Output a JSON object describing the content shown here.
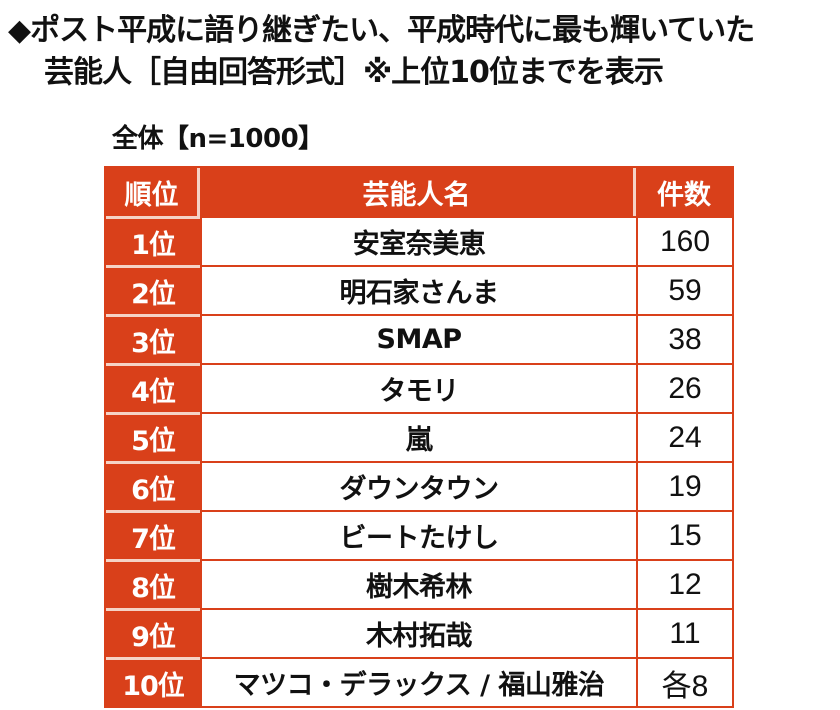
{
  "title": {
    "line1": "◆ポスト平成に語り継ぎたい、平成時代に最も輝いていた",
    "line2": "芸能人［自由回答形式］※上位10位までを表示"
  },
  "sample_label": "全体【n=1000】",
  "colors": {
    "header_bg": "#d9401a",
    "header_text": "#ffffff",
    "divider": "#f5d3c6"
  },
  "table": {
    "headers": [
      "順位",
      "芸能人名",
      "件数"
    ],
    "rows": [
      {
        "rank": "1位",
        "name": "安室奈美恵",
        "count": "160"
      },
      {
        "rank": "2位",
        "name": "明石家さんま",
        "count": "59"
      },
      {
        "rank": "3位",
        "name": "SMAP",
        "count": "38"
      },
      {
        "rank": "4位",
        "name": "タモリ",
        "count": "26"
      },
      {
        "rank": "5位",
        "name": "嵐",
        "count": "24"
      },
      {
        "rank": "6位",
        "name": "ダウンタウン",
        "count": "19"
      },
      {
        "rank": "7位",
        "name": "ビートたけし",
        "count": "15"
      },
      {
        "rank": "8位",
        "name": "樹木希林",
        "count": "12"
      },
      {
        "rank": "9位",
        "name": "木村拓哉",
        "count": "11"
      },
      {
        "rank": "10位",
        "name": "マツコ・デラックス / 福山雅治",
        "count": "各8"
      }
    ]
  },
  "chart_data": {
    "type": "table",
    "title": "ポスト平成に語り継ぎたい、平成時代に最も輝いていた芸能人［自由回答形式］※上位10位までを表示",
    "subtitle": "全体【n=1000】",
    "columns": [
      "順位",
      "芸能人名",
      "件数"
    ],
    "categories": [
      "安室奈美恵",
      "明石家さんま",
      "SMAP",
      "タモリ",
      "嵐",
      "ダウンタウン",
      "ビートたけし",
      "樹木希林",
      "木村拓哉",
      "マツコ・デラックス",
      "福山雅治"
    ],
    "values": [
      160,
      59,
      38,
      26,
      24,
      19,
      15,
      12,
      11,
      8,
      8
    ],
    "ranks": [
      1,
      2,
      3,
      4,
      5,
      6,
      7,
      8,
      9,
      10,
      10
    ]
  }
}
